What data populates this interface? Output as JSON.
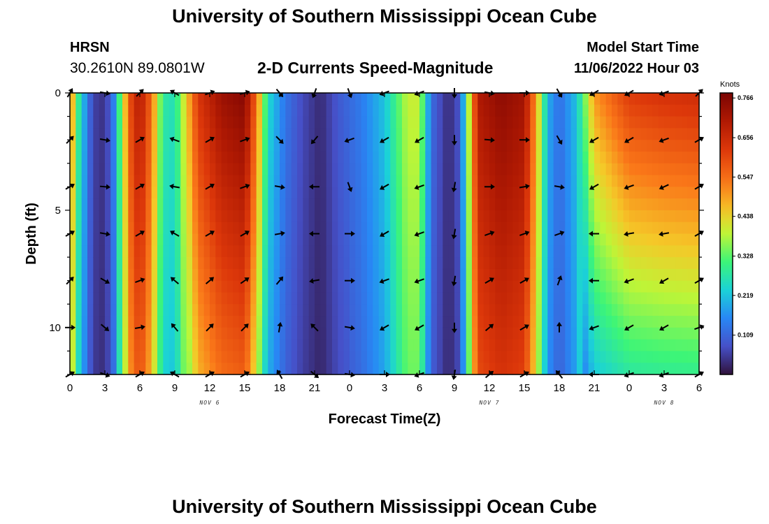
{
  "header": {
    "title": "University of Southern Mississippi Ocean Cube",
    "station": "HRSN",
    "coords": "30.2610N  89.0801W",
    "subtitle": "2-D Currents Speed-Magnitude",
    "model_start_label": "Model Start Time",
    "model_start_value": "11/06/2022 Hour 03"
  },
  "footer": {
    "title": "University of Southern Mississippi Ocean Cube"
  },
  "colors": {
    "arrow": "#000000",
    "frame": "#000000"
  },
  "chart_data": {
    "type": "heatmap",
    "title": "2-D Currents Speed-Magnitude",
    "xlabel": "Forecast Time(Z)",
    "ylabel": "Depth (ft)",
    "x_tick_labels": [
      "0",
      "3",
      "6",
      "9",
      "12",
      "15",
      "18",
      "21",
      "0",
      "3",
      "6",
      "9",
      "12",
      "15",
      "18",
      "21",
      "0",
      "3",
      "6"
    ],
    "day_labels": [
      {
        "label": "NOV 6",
        "at_hour": 12
      },
      {
        "label": "NOV 7",
        "at_hour": 36
      },
      {
        "label": "NOV 8",
        "at_hour": 51
      }
    ],
    "x_range_hours": [
      0,
      54
    ],
    "y_tick_labels": [
      "0",
      "5",
      "10"
    ],
    "y_ticks": [
      0,
      5,
      10
    ],
    "ylim": [
      0,
      12
    ],
    "y_inverted": true,
    "colorbar": {
      "unit": "Knots",
      "ticks": [
        "0.766",
        "0.656",
        "0.547",
        "0.438",
        "0.328",
        "0.219",
        "0.109"
      ],
      "tick_values": [
        0.766,
        0.656,
        0.547,
        0.438,
        0.328,
        0.219,
        0.109
      ],
      "range": [
        0.0,
        0.78
      ]
    },
    "speed_profile": [
      {
        "h": 0,
        "s": 0.55
      },
      {
        "h": 0.7,
        "s": 0.3
      },
      {
        "h": 1.3,
        "s": 0.18
      },
      {
        "h": 2.0,
        "s": 0.06
      },
      {
        "h": 3.0,
        "s": 0.04
      },
      {
        "h": 3.8,
        "s": 0.15
      },
      {
        "h": 4.5,
        "s": 0.4
      },
      {
        "h": 5.3,
        "s": 0.62
      },
      {
        "h": 6.0,
        "s": 0.7
      },
      {
        "h": 7.0,
        "s": 0.55
      },
      {
        "h": 8.0,
        "s": 0.28
      },
      {
        "h": 9.0,
        "s": 0.26
      },
      {
        "h": 10.0,
        "s": 0.45
      },
      {
        "h": 11.0,
        "s": 0.63
      },
      {
        "h": 13.0,
        "s": 0.73
      },
      {
        "h": 15.0,
        "s": 0.76
      },
      {
        "h": 16.0,
        "s": 0.55
      },
      {
        "h": 17.0,
        "s": 0.25
      },
      {
        "h": 18.5,
        "s": 0.13
      },
      {
        "h": 20.0,
        "s": 0.07
      },
      {
        "h": 21.5,
        "s": 0.03
      },
      {
        "h": 23.0,
        "s": 0.09
      },
      {
        "h": 25.0,
        "s": 0.14
      },
      {
        "h": 27.0,
        "s": 0.22
      },
      {
        "h": 29.0,
        "s": 0.4
      },
      {
        "h": 30.0,
        "s": 0.4
      },
      {
        "h": 31.0,
        "s": 0.12
      },
      {
        "h": 32.5,
        "s": 0.03
      },
      {
        "h": 33.5,
        "s": 0.09
      },
      {
        "h": 35.0,
        "s": 0.7
      },
      {
        "h": 37.0,
        "s": 0.75
      },
      {
        "h": 39.0,
        "s": 0.72
      },
      {
        "h": 40.0,
        "s": 0.5
      },
      {
        "h": 41.0,
        "s": 0.2
      },
      {
        "h": 42.0,
        "s": 0.12
      },
      {
        "h": 43.5,
        "s": 0.22
      },
      {
        "h": 45.0,
        "s": 0.5
      },
      {
        "h": 48.0,
        "s": 0.62
      },
      {
        "h": 51.0,
        "s": 0.64
      },
      {
        "h": 54.0,
        "s": 0.65
      }
    ],
    "vectors": [
      {
        "hour": 0,
        "dirs": [
          30,
          45,
          60,
          60,
          45,
          90,
          60
        ]
      },
      {
        "hour": 3,
        "dirs": [
          100,
          100,
          95,
          100,
          120,
          130,
          110
        ]
      },
      {
        "hour": 6,
        "dirs": [
          45,
          60,
          60,
          60,
          70,
          80,
          60
        ]
      },
      {
        "hour": 9,
        "dirs": [
          300,
          290,
          280,
          300,
          310,
          320,
          300
        ]
      },
      {
        "hour": 12,
        "dirs": [
          70,
          60,
          60,
          60,
          50,
          45,
          60
        ]
      },
      {
        "hour": 15,
        "dirs": [
          75,
          70,
          70,
          60,
          55,
          45,
          60
        ]
      },
      {
        "hour": 18,
        "dirs": [
          140,
          135,
          100,
          80,
          40,
          10,
          330
        ]
      },
      {
        "hour": 21,
        "dirs": [
          200,
          220,
          270,
          270,
          260,
          315,
          130
        ]
      },
      {
        "hour": 24,
        "dirs": [
          160,
          250,
          160,
          90,
          90,
          100,
          100
        ]
      },
      {
        "hour": 27,
        "dirs": [
          250,
          240,
          240,
          240,
          250,
          240,
          90
        ]
      },
      {
        "hour": 30,
        "dirs": [
          250,
          240,
          250,
          250,
          250,
          240,
          250
        ]
      },
      {
        "hour": 33,
        "dirs": [
          180,
          180,
          190,
          190,
          190,
          180,
          190
        ]
      },
      {
        "hour": 36,
        "dirs": [
          100,
          95,
          90,
          70,
          60,
          50,
          50
        ]
      },
      {
        "hour": 39,
        "dirs": [
          90,
          90,
          80,
          70,
          60,
          60,
          60
        ]
      },
      {
        "hour": 42,
        "dirs": [
          150,
          150,
          100,
          70,
          20,
          0,
          320
        ]
      },
      {
        "hour": 45,
        "dirs": [
          240,
          240,
          240,
          270,
          270,
          250,
          270
        ]
      },
      {
        "hour": 48,
        "dirs": [
          240,
          240,
          250,
          260,
          250,
          240,
          250
        ]
      },
      {
        "hour": 51,
        "dirs": [
          250,
          250,
          245,
          260,
          240,
          240,
          250
        ]
      },
      {
        "hour": 54,
        "dirs": [
          45,
          60,
          60,
          60,
          60,
          70,
          60
        ]
      }
    ],
    "vector_depths": [
      0,
      2,
      4,
      6,
      8,
      10,
      12
    ]
  }
}
